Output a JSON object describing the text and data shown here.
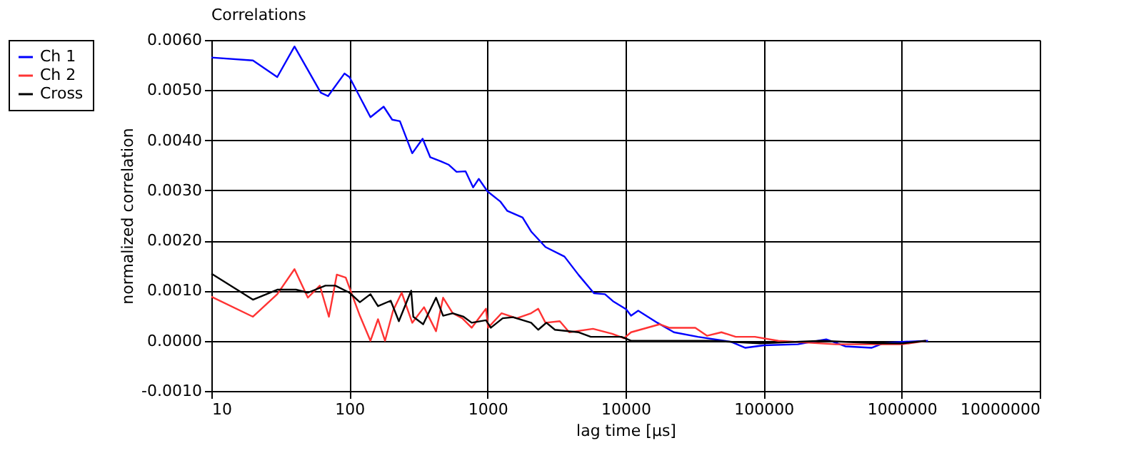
{
  "chart_data": {
    "type": "line",
    "title": "Correlations",
    "xlabel": "lag time [µs]",
    "ylabel": "normalized correlation",
    "log": "x",
    "grid": true,
    "legend": "top left",
    "marker": "none",
    "line_style": "solid",
    "xlim": [
      10,
      10000000
    ],
    "xticks": [
      10,
      100,
      1000,
      10000,
      100000,
      1000000,
      10000000
    ],
    "ylim": [
      -0.001,
      0.006
    ],
    "yticks": [
      {
        "value": -0.001,
        "label": "-0.0010"
      },
      {
        "value": 0.0,
        "label": "0.0000"
      },
      {
        "value": 0.001,
        "label": "0.0010"
      },
      {
        "value": 0.002,
        "label": "0.0020"
      },
      {
        "value": 0.003,
        "label": "0.0030"
      },
      {
        "value": 0.004,
        "label": "0.0040"
      },
      {
        "value": 0.005,
        "label": "0.0050"
      },
      {
        "value": 0.006,
        "label": "0.0060"
      }
    ],
    "series": [
      {
        "name": "Ch 1",
        "color": "#0000ff",
        "x": [
          10,
          20,
          30,
          40,
          62,
          70,
          92,
          100,
          142,
          177,
          204,
          232,
          285,
          339,
          385,
          459,
          525,
          597,
          694,
          787,
          865,
          1000,
          1236,
          1393,
          1795,
          2070,
          2630,
          3610,
          4580,
          5900,
          7090,
          8110,
          10100,
          10960,
          12350,
          17000,
          22400,
          33400,
          58100,
          73800,
          101000,
          177000,
          284000,
          390000,
          604000,
          738000,
          1010000,
          1550000
        ],
        "values": [
          0.00565,
          0.00559,
          0.00526,
          0.00587,
          0.00495,
          0.00488,
          0.00533,
          0.00526,
          0.00446,
          0.00467,
          0.00441,
          0.00438,
          0.00374,
          0.00403,
          0.00366,
          0.00358,
          0.00351,
          0.00337,
          0.00338,
          0.00306,
          0.00323,
          0.00298,
          0.00278,
          0.00259,
          0.00246,
          0.00218,
          0.00187,
          0.00168,
          0.00131,
          0.00095,
          0.00093,
          0.00079,
          0.00063,
          0.0005,
          0.0006,
          0.00036,
          0.00017,
          8e-05,
          -2e-05,
          -0.00014,
          -9e-05,
          -7e-05,
          3e-05,
          -0.00011,
          -0.00014,
          -5e-05,
          -2e-05,
          0.0
        ]
      },
      {
        "name": "Ch 2",
        "color": "#ff3333",
        "x": [
          10,
          20,
          30,
          40,
          50,
          61,
          71,
          81,
          94,
          119,
          142,
          161,
          181,
          207,
          239,
          285,
          347,
          424,
          477,
          560,
          656,
          768,
          975,
          1010,
          1265,
          1630,
          2070,
          2330,
          2630,
          3340,
          3910,
          5810,
          8000,
          9750,
          10960,
          17700,
          20700,
          32000,
          39000,
          49500,
          62800,
          86500,
          128000,
          333000,
          1010000,
          1500000
        ],
        "values": [
          0.00088,
          0.00048,
          0.00093,
          0.00143,
          0.00086,
          0.0011,
          0.00048,
          0.00132,
          0.00126,
          0.0005,
          0.0,
          0.00043,
          0.0,
          0.0006,
          0.00096,
          0.00036,
          0.00067,
          0.00019,
          0.00086,
          0.00055,
          0.00045,
          0.00026,
          0.00064,
          0.00026,
          0.00055,
          0.00045,
          0.00055,
          0.00064,
          0.00036,
          0.00039,
          0.00017,
          0.00024,
          0.00014,
          5e-05,
          0.00017,
          0.00033,
          0.00026,
          0.00026,
          0.0001,
          0.00017,
          8e-05,
          8e-05,
          0.0,
          -7e-05,
          -7e-05,
          0.0
        ]
      },
      {
        "name": "Cross",
        "color": "#000000",
        "x": [
          10,
          20,
          30,
          41,
          50,
          67,
          79,
          100,
          119,
          142,
          161,
          199,
          228,
          280,
          290,
          342,
          424,
          477,
          560,
          671,
          768,
          975,
          1057,
          1288,
          1530,
          2070,
          2330,
          2670,
          3080,
          4580,
          5600,
          9350,
          10960,
          42400,
          93500,
          262000,
          681000,
          1010000,
          1500000
        ],
        "values": [
          0.00134,
          0.00082,
          0.00102,
          0.00102,
          0.00096,
          0.0011,
          0.0011,
          0.00096,
          0.00077,
          0.00093,
          0.00069,
          0.0008,
          0.00039,
          0.001,
          0.00048,
          0.00033,
          0.00086,
          0.0005,
          0.00055,
          0.00048,
          0.00036,
          0.00041,
          0.00026,
          0.00045,
          0.00047,
          0.00036,
          0.00022,
          0.00036,
          0.00022,
          0.00017,
          8e-05,
          8e-05,
          0.0,
          0.0,
          -5e-05,
          0.0,
          -5e-05,
          -5e-05,
          0.0
        ]
      }
    ]
  }
}
